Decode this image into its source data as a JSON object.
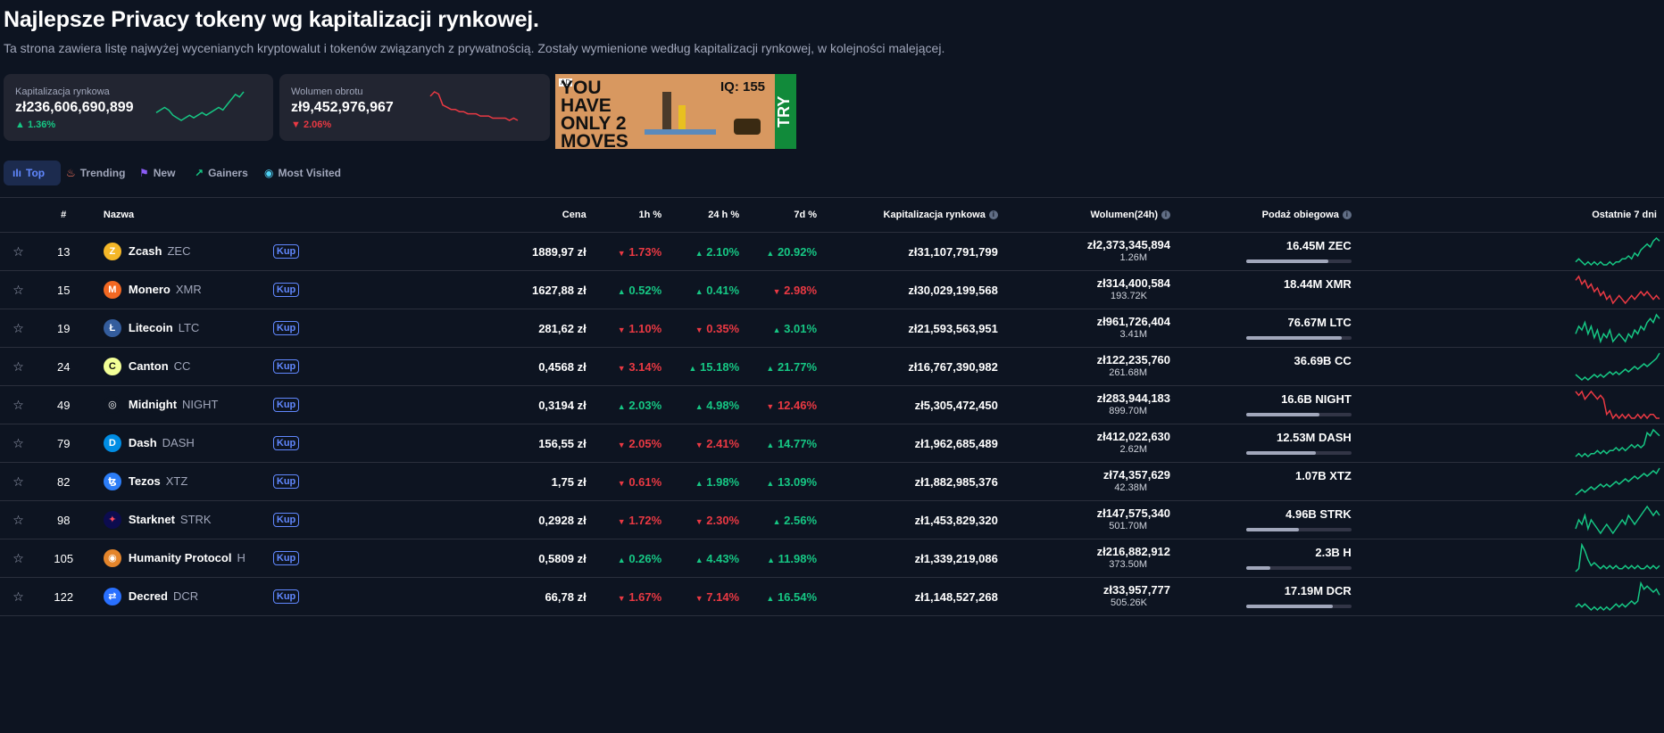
{
  "page": {
    "title": "Najlepsze Privacy tokeny wg kapitalizacji rynkowej.",
    "subtitle": "Ta strona zawiera listę najwyżej wycenianych kryptowalut i tokenów związanych z prywatnością. Zostały wymienione według kapitalizacji rynkowej, w kolejności malejącej."
  },
  "cards": [
    {
      "label": "Kapitalizacja rynkowa",
      "value": "zł236,606,690,899",
      "change": "1.36%",
      "dir": "up",
      "trend": [
        5,
        6,
        7,
        6,
        4,
        3,
        2,
        3,
        4,
        3,
        4,
        5,
        4,
        5,
        6,
        7,
        6,
        8,
        10,
        12,
        11,
        13
      ]
    },
    {
      "label": "Wolumen obrotu",
      "value": "zł9,452,976,967",
      "change": "2.06%",
      "dir": "down",
      "trend": [
        12,
        14,
        13,
        8,
        7,
        6,
        6,
        5,
        5,
        4,
        4,
        4,
        3,
        3,
        3,
        2,
        2,
        2,
        2,
        1,
        2,
        1
      ]
    }
  ],
  "ad": {
    "badge": "AD",
    "line1": "YOU HAVE ONLY 2 MOVES",
    "iq": "IQ: 155",
    "cta": "TRY"
  },
  "tabs": [
    {
      "label": "Top",
      "icon": "bar-chart-icon",
      "glyph": "▮",
      "active": true
    },
    {
      "label": "Trending",
      "icon": "flame-icon",
      "glyph": "🔥",
      "active": false
    },
    {
      "label": "New",
      "icon": "flag-icon",
      "glyph": "⚑",
      "active": false
    },
    {
      "label": "Gainers",
      "icon": "trend-up-icon",
      "glyph": "↗",
      "active": false
    },
    {
      "label": "Most Visited",
      "icon": "eye-icon",
      "glyph": "◉",
      "active": false
    }
  ],
  "table": {
    "headers": {
      "rank": "#",
      "name": "Nazwa",
      "price": "Cena",
      "h1": "1h %",
      "h24": "24 h %",
      "d7": "7d %",
      "mcap": "Kapitalizacja rynkowa",
      "vol": "Wolumen(24h)",
      "supply": "Podaż obiegowa",
      "last7": "Ostatnie 7 dni"
    },
    "buy_label": "Kup",
    "rows": [
      {
        "rank": "13",
        "name": "Zcash",
        "symbol": "ZEC",
        "icon": "zcash-icon",
        "icon_bg": "#f4b728",
        "icon_fg": "#ffffff",
        "glyph": "Z",
        "price": "1889,97 zł",
        "h1": "1.73%",
        "h1d": "down",
        "h24": "2.10%",
        "h24d": "up",
        "d7": "20.92%",
        "d7d": "up",
        "mcap": "zł31,107,791,799",
        "vol": "zł2,373,345,894",
        "vol_coin": "1.26M",
        "supply": "16.45M ZEC",
        "supply_pct": 78,
        "spark_dir": "up",
        "spark": [
          3,
          4,
          3,
          2,
          3,
          2,
          3,
          2,
          3,
          2,
          2,
          3,
          2,
          3,
          3,
          4,
          4,
          5,
          4,
          6,
          5,
          7,
          8,
          9,
          8,
          10,
          11,
          10
        ]
      },
      {
        "rank": "15",
        "name": "Monero",
        "symbol": "XMR",
        "icon": "monero-icon",
        "icon_bg": "#f26822",
        "icon_fg": "#ffffff",
        "glyph": "M",
        "price": "1627,88 zł",
        "h1": "0.52%",
        "h1d": "up",
        "h24": "0.41%",
        "h24d": "up",
        "d7": "2.98%",
        "d7d": "down",
        "mcap": "zł30,029,199,568",
        "vol": "zł314,400,584",
        "vol_coin": "193.72K",
        "supply": "18.44M XMR",
        "supply_pct": 0,
        "spark_dir": "down",
        "spark": [
          9,
          10,
          8,
          9,
          7,
          8,
          6,
          7,
          5,
          6,
          4,
          5,
          3,
          4,
          5,
          4,
          3,
          4,
          5,
          4,
          5,
          6,
          5,
          6,
          5,
          4,
          5,
          4
        ]
      },
      {
        "rank": "19",
        "name": "Litecoin",
        "symbol": "LTC",
        "icon": "litecoin-icon",
        "icon_bg": "#345d9d",
        "icon_fg": "#ffffff",
        "glyph": "Ł",
        "price": "281,62 zł",
        "h1": "1.10%",
        "h1d": "down",
        "h24": "0.35%",
        "h24d": "down",
        "d7": "3.01%",
        "d7d": "up",
        "mcap": "zł21,593,563,951",
        "vol": "zł961,726,404",
        "vol_coin": "3.41M",
        "supply": "76.67M LTC",
        "supply_pct": 91,
        "spark_dir": "up",
        "spark": [
          4,
          6,
          5,
          7,
          4,
          6,
          3,
          5,
          2,
          4,
          3,
          5,
          2,
          3,
          4,
          3,
          2,
          4,
          3,
          5,
          4,
          6,
          5,
          7,
          8,
          7,
          9,
          8
        ]
      },
      {
        "rank": "24",
        "name": "Canton",
        "symbol": "CC",
        "icon": "canton-icon",
        "icon_bg": "#f3ff97",
        "icon_fg": "#111111",
        "glyph": "C",
        "price": "0,4568 zł",
        "h1": "3.14%",
        "h1d": "down",
        "h24": "15.18%",
        "h24d": "up",
        "d7": "21.77%",
        "d7d": "up",
        "mcap": "zł16,767,390,982",
        "vol": "zł122,235,760",
        "vol_coin": "261.68M",
        "supply": "36.69B CC",
        "supply_pct": 0,
        "spark_dir": "up",
        "spark": [
          3,
          2,
          1,
          2,
          1,
          2,
          3,
          2,
          3,
          2,
          3,
          4,
          3,
          4,
          3,
          4,
          5,
          4,
          5,
          6,
          5,
          6,
          7,
          6,
          7,
          8,
          9,
          11
        ]
      },
      {
        "rank": "49",
        "name": "Midnight",
        "symbol": "NIGHT",
        "icon": "midnight-icon",
        "icon_bg": "#0d1421",
        "icon_fg": "#ffffff",
        "glyph": "◎",
        "price": "0,3194 zł",
        "h1": "2.03%",
        "h1d": "up",
        "h24": "4.98%",
        "h24d": "up",
        "d7": "12.46%",
        "d7d": "down",
        "mcap": "zł5,305,472,450",
        "vol": "zł283,944,183",
        "vol_coin": "899.70M",
        "supply": "16.6B NIGHT",
        "supply_pct": 70,
        "spark_dir": "down",
        "spark": [
          10,
          9,
          10,
          8,
          9,
          10,
          9,
          8,
          9,
          8,
          4,
          5,
          3,
          4,
          3,
          4,
          3,
          4,
          3,
          3,
          4,
          3,
          4,
          3,
          4,
          4,
          3,
          3
        ]
      },
      {
        "rank": "79",
        "name": "Dash",
        "symbol": "DASH",
        "icon": "dash-icon",
        "icon_bg": "#008de4",
        "icon_fg": "#ffffff",
        "glyph": "D",
        "price": "156,55 zł",
        "h1": "2.05%",
        "h1d": "down",
        "h24": "2.41%",
        "h24d": "down",
        "d7": "14.77%",
        "d7d": "up",
        "mcap": "zł1,962,685,489",
        "vol": "zł412,022,630",
        "vol_coin": "2.62M",
        "supply": "12.53M DASH",
        "supply_pct": 66,
        "spark_dir": "up",
        "spark": [
          2,
          3,
          2,
          3,
          2,
          3,
          3,
          4,
          3,
          4,
          3,
          4,
          4,
          5,
          4,
          5,
          4,
          5,
          6,
          5,
          6,
          5,
          6,
          10,
          9,
          11,
          10,
          9
        ]
      },
      {
        "rank": "82",
        "name": "Tezos",
        "symbol": "XTZ",
        "icon": "tezos-icon",
        "icon_bg": "#2c7df7",
        "icon_fg": "#ffffff",
        "glyph": "ꜩ",
        "price": "1,75 zł",
        "h1": "0.61%",
        "h1d": "down",
        "h24": "1.98%",
        "h24d": "up",
        "d7": "13.09%",
        "d7d": "up",
        "mcap": "zł1,882,985,376",
        "vol": "zł74,357,629",
        "vol_coin": "42.38M",
        "supply": "1.07B XTZ",
        "supply_pct": 0,
        "spark_dir": "up",
        "spark": [
          2,
          3,
          4,
          3,
          4,
          5,
          4,
          5,
          6,
          5,
          6,
          5,
          6,
          7,
          6,
          7,
          8,
          7,
          8,
          9,
          8,
          9,
          10,
          9,
          10,
          11,
          10,
          12
        ]
      },
      {
        "rank": "98",
        "name": "Starknet",
        "symbol": "STRK",
        "icon": "starknet-icon",
        "icon_bg": "#0c0c4f",
        "icon_fg": "#ff4a5c",
        "glyph": "✦",
        "price": "0,2928 zł",
        "h1": "1.72%",
        "h1d": "down",
        "h24": "2.30%",
        "h24d": "down",
        "d7": "2.56%",
        "d7d": "up",
        "mcap": "zł1,453,829,320",
        "vol": "zł147,575,340",
        "vol_coin": "501.70M",
        "supply": "4.96B STRK",
        "supply_pct": 50,
        "spark_dir": "up",
        "spark": [
          5,
          7,
          6,
          8,
          5,
          7,
          6,
          5,
          4,
          5,
          6,
          5,
          4,
          5,
          6,
          7,
          6,
          8,
          7,
          6,
          7,
          8,
          9,
          10,
          9,
          8,
          9,
          8
        ]
      },
      {
        "rank": "105",
        "name": "Humanity Protocol",
        "symbol": "H",
        "icon": "humanity-icon",
        "icon_bg": "#e4852b",
        "icon_fg": "#ffffff",
        "glyph": "◉",
        "price": "0,5809 zł",
        "h1": "0.26%",
        "h1d": "up",
        "h24": "4.43%",
        "h24d": "up",
        "d7": "11.98%",
        "d7d": "up",
        "mcap": "zł1,339,219,086",
        "vol": "zł216,882,912",
        "vol_coin": "373.50M",
        "supply": "2.3B H",
        "supply_pct": 23,
        "spark_dir": "up",
        "spark": [
          2,
          3,
          11,
          9,
          6,
          4,
          5,
          4,
          3,
          4,
          3,
          4,
          3,
          4,
          3,
          3,
          4,
          3,
          4,
          3,
          4,
          3,
          3,
          4,
          3,
          4,
          3,
          4
        ]
      },
      {
        "rank": "122",
        "name": "Decred",
        "symbol": "DCR",
        "icon": "decred-icon",
        "icon_bg": "#2970ff",
        "icon_fg": "#ffffff",
        "glyph": "⇄",
        "price": "66,78 zł",
        "h1": "1.67%",
        "h1d": "down",
        "h24": "7.14%",
        "h24d": "down",
        "d7": "16.54%",
        "d7d": "up",
        "mcap": "zł1,148,527,268",
        "vol": "zł33,957,777",
        "vol_coin": "505.26K",
        "supply": "17.19M DCR",
        "supply_pct": 82,
        "spark_dir": "up",
        "spark": [
          4,
          5,
          4,
          5,
          4,
          3,
          4,
          3,
          4,
          3,
          4,
          3,
          4,
          5,
          4,
          5,
          4,
          5,
          6,
          5,
          6,
          12,
          10,
          11,
          10,
          9,
          10,
          8
        ]
      }
    ]
  }
}
